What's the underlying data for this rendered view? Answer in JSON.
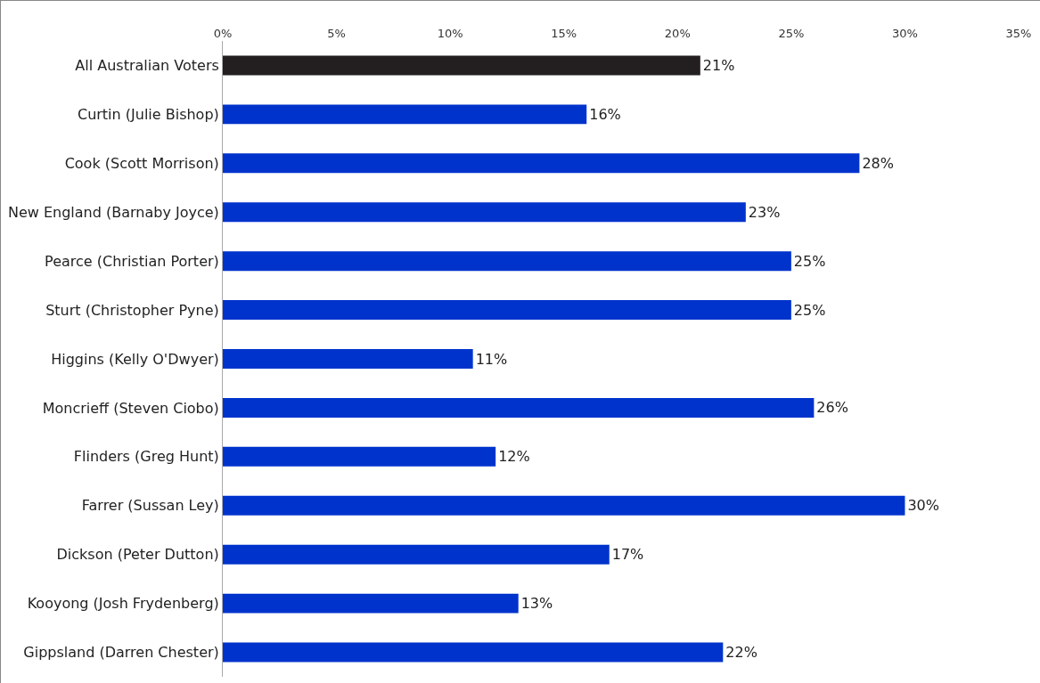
{
  "chart_data": {
    "type": "bar",
    "orientation": "horizontal",
    "categories": [
      "All Australian Voters",
      "Curtin (Julie Bishop)",
      "Cook (Scott Morrison)",
      "New England (Barnaby Joyce)",
      "Pearce (Christian Porter)",
      "Sturt (Christopher Pyne)",
      "Higgins (Kelly O'Dwyer)",
      "Moncrieff (Steven Ciobo)",
      "Flinders (Greg Hunt)",
      "Farrer (Sussan Ley)",
      "Dickson (Peter Dutton)",
      "Kooyong (Josh Frydenberg)",
      "Gippsland (Darren Chester)"
    ],
    "values": [
      21,
      16,
      28,
      23,
      25,
      25,
      11,
      26,
      12,
      30,
      17,
      13,
      22
    ],
    "value_labels": [
      "21%",
      "16%",
      "28%",
      "23%",
      "25%",
      "25%",
      "11%",
      "26%",
      "12%",
      "30%",
      "17%",
      "13%",
      "22%"
    ],
    "colors": [
      "#231f20",
      "#0033cc",
      "#0033cc",
      "#0033cc",
      "#0033cc",
      "#0033cc",
      "#0033cc",
      "#0033cc",
      "#0033cc",
      "#0033cc",
      "#0033cc",
      "#0033cc",
      "#0033cc"
    ],
    "xlim": [
      0,
      35
    ],
    "xticks": [
      {
        "value": 0,
        "label": "0%"
      },
      {
        "value": 5,
        "label": "5%"
      },
      {
        "value": 10,
        "label": "10%"
      },
      {
        "value": 15,
        "label": "15%"
      },
      {
        "value": 20,
        "label": "20%"
      },
      {
        "value": 25,
        "label": "25%"
      },
      {
        "value": 30,
        "label": "30%"
      },
      {
        "value": 35,
        "label": "35%"
      }
    ],
    "grid": false,
    "legend": false
  }
}
